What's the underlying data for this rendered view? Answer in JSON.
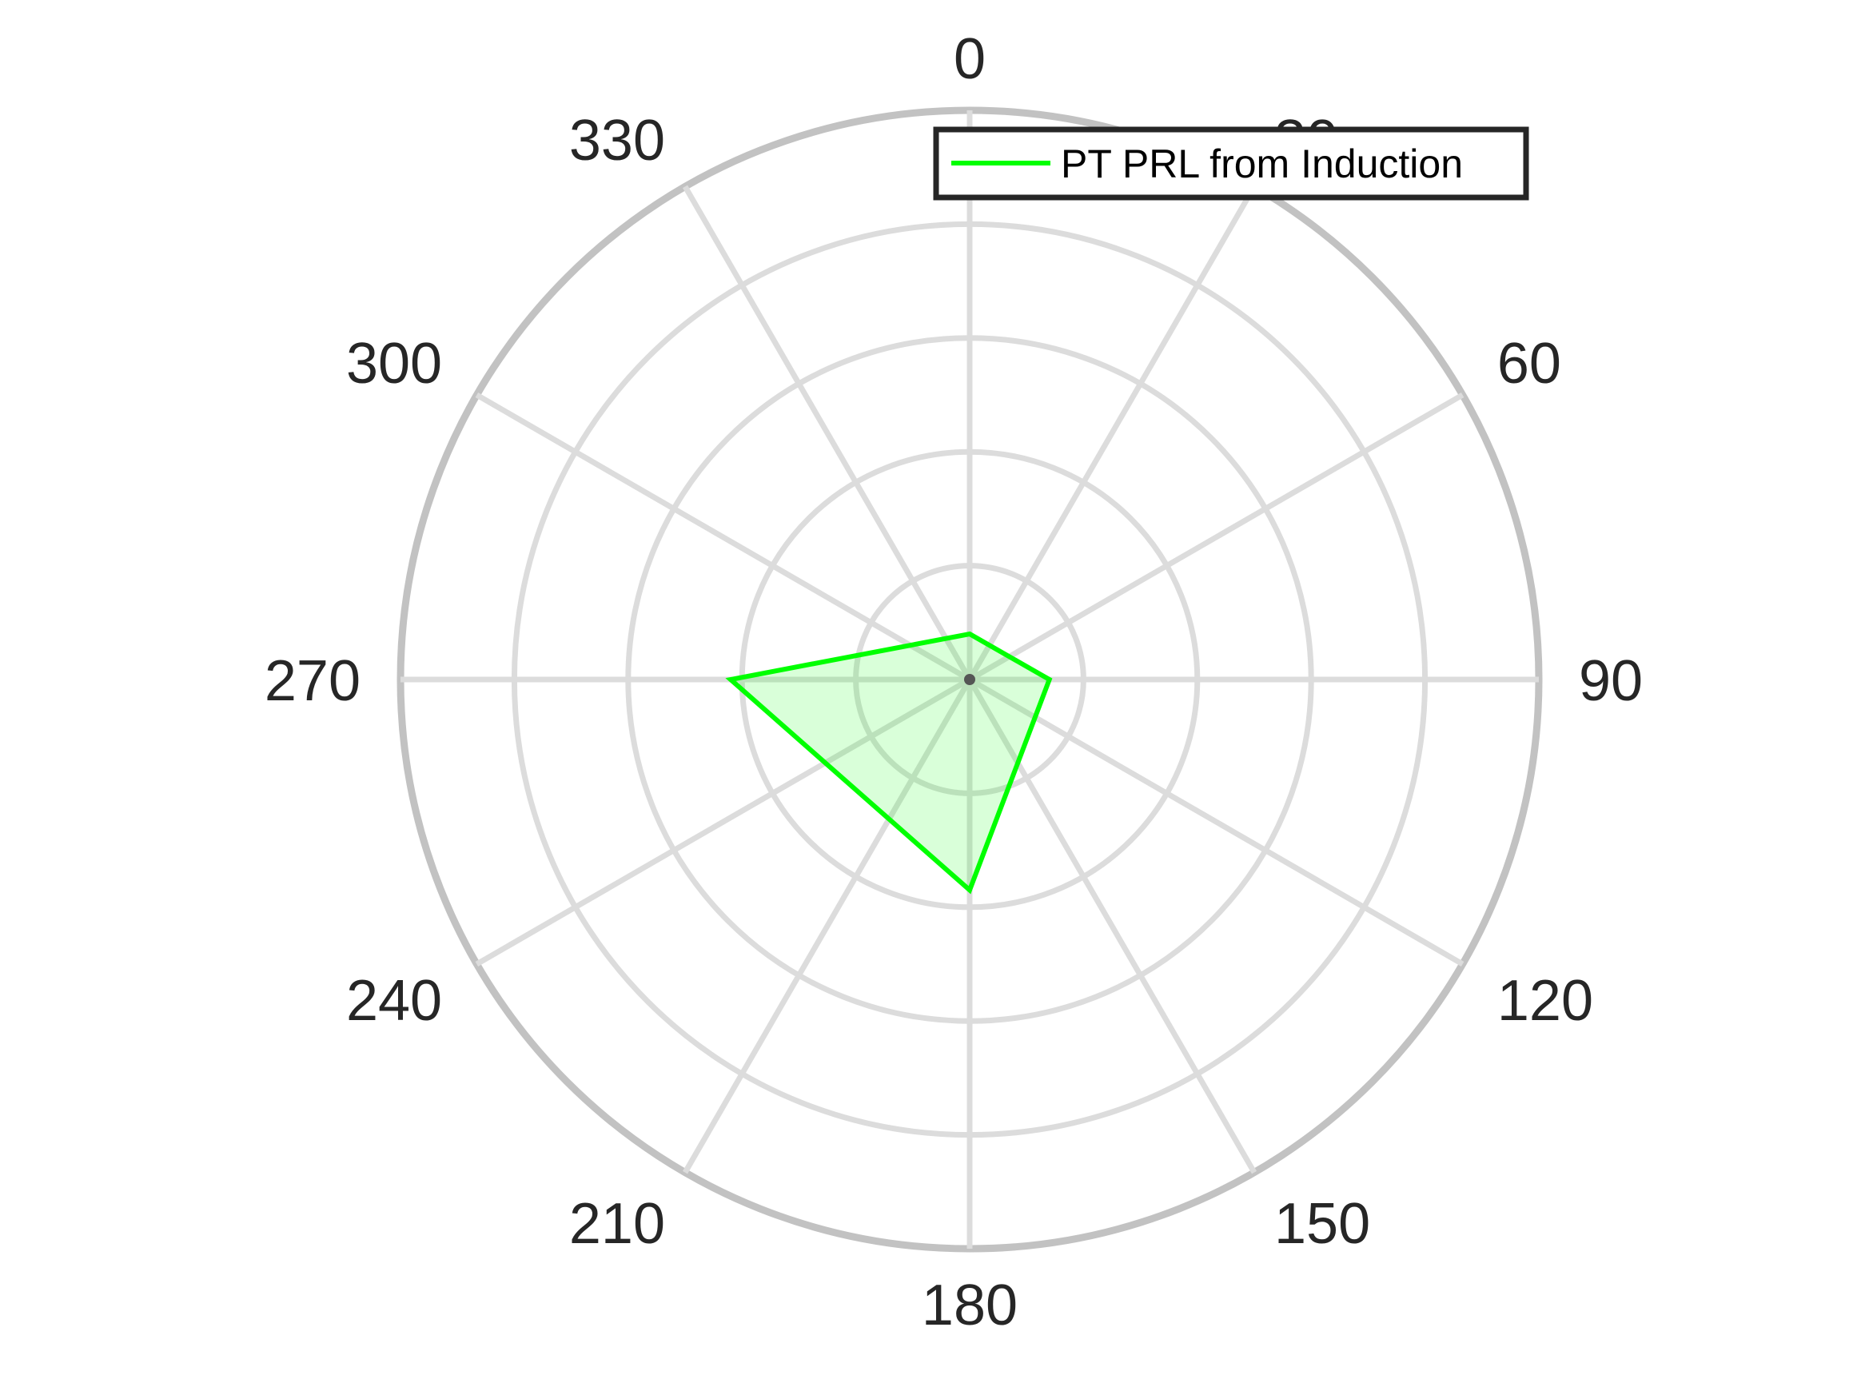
{
  "chart_data": {
    "type": "polar-area",
    "title": "",
    "angle_direction": "clockwise",
    "zero_location": "top",
    "theta_ticks": [
      0,
      30,
      60,
      90,
      120,
      150,
      180,
      210,
      240,
      270,
      300,
      330
    ],
    "theta_tick_labels": [
      "0",
      "30",
      "60",
      "90",
      "120",
      "150",
      "180",
      "210",
      "240",
      "270",
      "300",
      "330"
    ],
    "r_lim": [
      0,
      5
    ],
    "r_rings": [
      1,
      2,
      3,
      4,
      5
    ],
    "r_tick_labels_visible": false,
    "grid": true,
    "legend_position": "top-right",
    "series": [
      {
        "name": "PT PRL from Induction",
        "color": "#00ff00",
        "fill_color": "#00ff00",
        "fill_alpha": 0.15,
        "points": [
          {
            "theta": 0,
            "r": 0.4
          },
          {
            "theta": 90,
            "r": 0.7
          },
          {
            "theta": 180,
            "r": 1.85
          },
          {
            "theta": 270,
            "r": 2.1
          }
        ]
      }
    ]
  }
}
